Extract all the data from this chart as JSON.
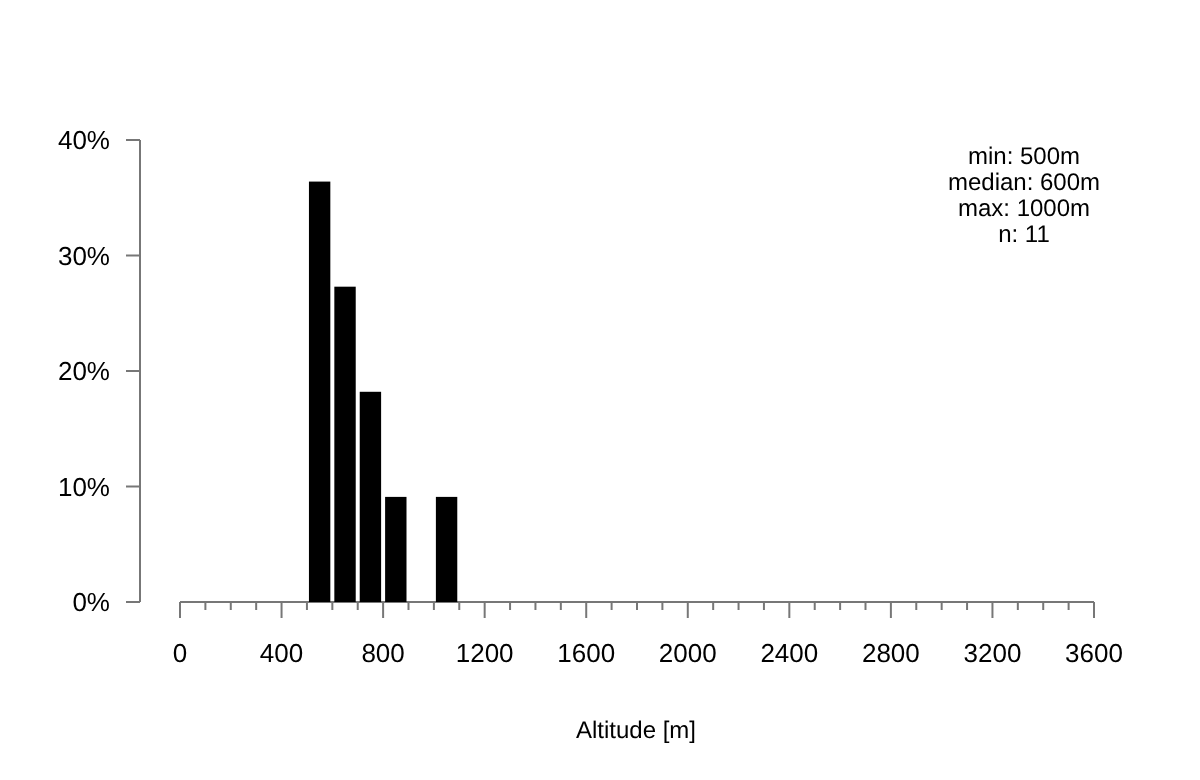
{
  "chart_data": {
    "type": "histogram",
    "xlabel": "Altitude [m]",
    "bins": [
      500,
      600,
      700,
      800,
      900,
      1000,
      1100
    ],
    "values": [
      36.4,
      27.3,
      18.2,
      9.1,
      0,
      9.1
    ],
    "color": "#000000",
    "xlim": [
      0,
      3600
    ],
    "xticks": [
      0,
      {
        "value": 100,
        "label": null
      },
      {
        "value": 200,
        "label": null
      },
      {
        "value": 300,
        "label": null
      },
      400,
      {
        "value": 500,
        "label": null
      },
      {
        "value": 600,
        "label": null
      },
      {
        "value": 700,
        "label": null
      },
      800,
      {
        "value": 900,
        "label": null
      },
      {
        "value": 1000,
        "label": null
      },
      {
        "value": 1100,
        "label": null
      },
      1200,
      {
        "value": 1300,
        "label": null
      },
      {
        "value": 1400,
        "label": null
      },
      {
        "value": 1500,
        "label": null
      },
      1600,
      {
        "value": 1700,
        "label": null
      },
      {
        "value": 1800,
        "label": null
      },
      {
        "value": 1900,
        "label": null
      },
      2000,
      {
        "value": 2100,
        "label": null
      },
      {
        "value": 2200,
        "label": null
      },
      {
        "value": 2300,
        "label": null
      },
      2400,
      {
        "value": 2500,
        "label": null
      },
      {
        "value": 2600,
        "label": null
      },
      {
        "value": 2700,
        "label": null
      },
      2800,
      {
        "value": 2900,
        "label": null
      },
      {
        "value": 3000,
        "label": null
      },
      {
        "value": 3100,
        "label": null
      },
      3200,
      {
        "value": 3300,
        "label": null
      },
      {
        "value": 3400,
        "label": null
      },
      {
        "value": 3500,
        "label": null
      },
      3600
    ],
    "ylim": [
      0,
      40
    ],
    "yticks": [
      {
        "value": 0,
        "label": "0%"
      },
      {
        "value": 10,
        "label": "10%"
      },
      {
        "value": 20,
        "label": "20%"
      },
      {
        "value": 30,
        "label": "30%"
      },
      {
        "value": 40,
        "label": "40%"
      }
    ],
    "annotations": [
      "min: 500m",
      "median: 600m",
      "max: 1000m",
      "n:  11"
    ]
  }
}
